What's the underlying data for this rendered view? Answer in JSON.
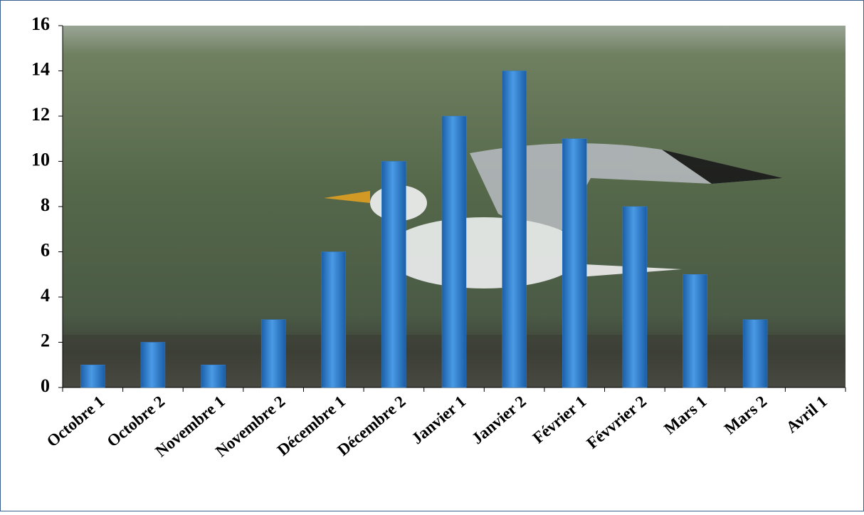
{
  "chart_data": {
    "type": "bar",
    "categories": [
      "Octobre 1",
      "Octobre 2",
      "Novembre 1",
      "Novembre 2",
      "Décembre 1",
      "Décembre 2",
      "Janvier 1",
      "Janvier 2",
      "Février 1",
      "Févvrier 2",
      "Mars 1",
      "Mars 2",
      "Avril 1"
    ],
    "values": [
      1,
      2,
      1,
      3,
      6,
      10,
      12,
      14,
      11,
      8,
      5,
      3,
      null
    ],
    "color": "#2f7fd0",
    "ylim": [
      0,
      16
    ],
    "yticks": [
      0,
      2,
      4,
      6,
      8,
      10,
      12,
      14,
      16
    ],
    "grid": false
  }
}
